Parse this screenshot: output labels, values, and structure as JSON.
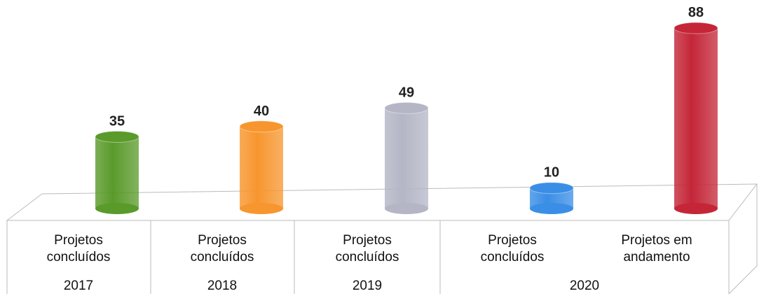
{
  "chart_data": {
    "type": "bar",
    "categories": [
      "Projetos concluídos",
      "Projetos concluídos",
      "Projetos concluídos",
      "Projetos concluídos",
      "Projetos em andamento"
    ],
    "group_labels": [
      "2017",
      "2018",
      "2019",
      "2020"
    ],
    "values": [
      35,
      40,
      49,
      10,
      88
    ],
    "colors": [
      "#5a9a2a",
      "#f7962e",
      "#b4b6c6",
      "#3a8ee6",
      "#c42638"
    ]
  }
}
